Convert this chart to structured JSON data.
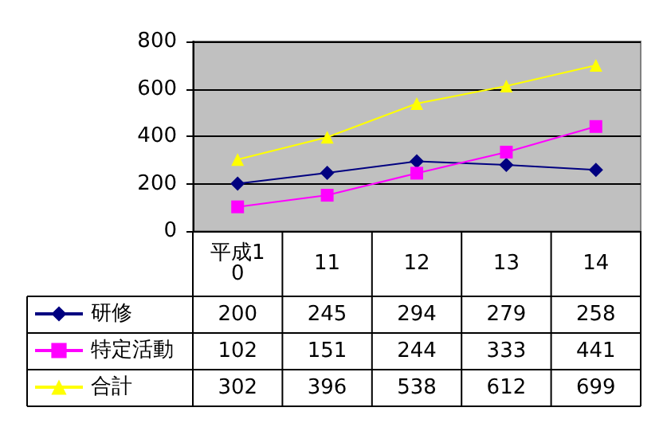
{
  "chart_data": {
    "type": "line",
    "categories": [
      "平成10",
      "11",
      "12",
      "13",
      "14"
    ],
    "series": [
      {
        "name": "研修",
        "color": "#000080",
        "marker": "diamond",
        "values": [
          200,
          245,
          294,
          279,
          258
        ]
      },
      {
        "name": "特定活動",
        "color": "#ff00ff",
        "marker": "square",
        "values": [
          102,
          151,
          244,
          333,
          441
        ]
      },
      {
        "name": "合計",
        "color": "#ffff00",
        "marker": "triangle",
        "values": [
          302,
          396,
          538,
          612,
          699
        ]
      }
    ],
    "ylim": [
      0,
      800
    ],
    "yticks": [
      0,
      200,
      400,
      600,
      800
    ],
    "grid": "y",
    "legend": "bottom left",
    "data_labels": true
  }
}
